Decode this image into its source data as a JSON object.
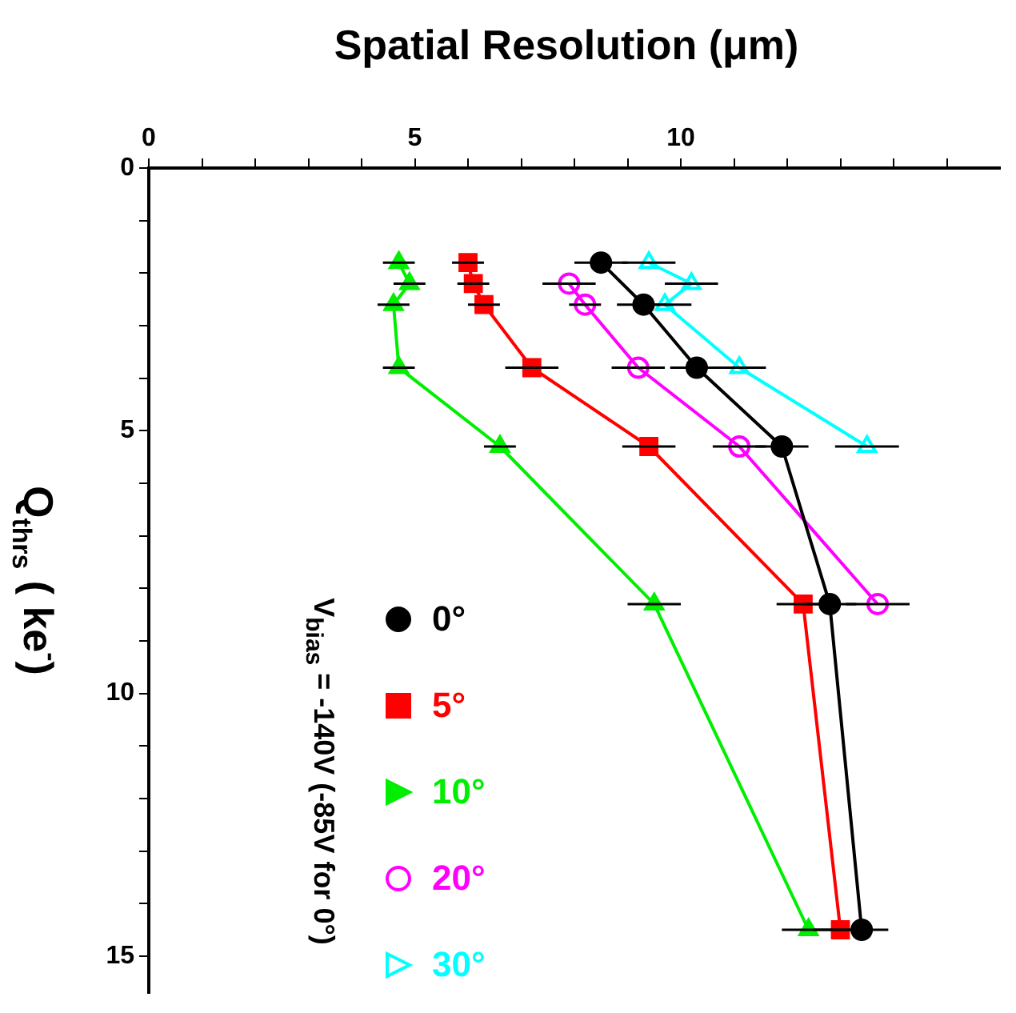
{
  "chart_data": {
    "type": "line",
    "xlabel": "Spatial Resolution (μm)",
    "ylabel": "Q$_{thrs}$ ( ke$^{-}$)",
    "legend_title": "V$_{bias}$ = -140V (-85V for 0°)",
    "legend": "bottom left",
    "grid": false,
    "line_style": "solid",
    "xlim": [
      0,
      16
    ],
    "xticks": [
      0,
      {
        "value": 1,
        "label": null
      },
      {
        "value": 2,
        "label": null
      },
      {
        "value": 3,
        "label": null
      },
      {
        "value": 4,
        "label": null
      },
      5,
      {
        "value": 6,
        "label": null
      },
      {
        "value": 7,
        "label": null
      },
      {
        "value": 8,
        "label": null
      },
      {
        "value": 9,
        "label": null
      },
      10,
      {
        "value": 11,
        "label": null
      },
      {
        "value": 12,
        "label": null
      },
      {
        "value": 13,
        "label": null
      },
      {
        "value": 14,
        "label": null
      },
      {
        "value": 15,
        "label": null
      }
    ],
    "ylim": [
      15.7,
      0
    ],
    "yticks": [
      0,
      {
        "value": 1,
        "label": null
      },
      {
        "value": 2,
        "label": null
      },
      {
        "value": 3,
        "label": null
      },
      {
        "value": 4,
        "label": null
      },
      5,
      {
        "value": 6,
        "label": null
      },
      {
        "value": 7,
        "label": null
      },
      {
        "value": 8,
        "label": null
      },
      {
        "value": 9,
        "label": null
      },
      10,
      {
        "value": 11,
        "label": null
      },
      {
        "value": 12,
        "label": null
      },
      {
        "value": 13,
        "label": null
      },
      {
        "value": 14,
        "label": null
      },
      15
    ],
    "series": [
      {
        "name": "0°",
        "color": "#000000",
        "marker": "circle",
        "x": [
          8.5,
          9.3,
          10.3,
          11.9,
          12.8,
          13.4
        ],
        "values": [
          1.8,
          2.6,
          3.8,
          5.3,
          8.3,
          14.5
        ],
        "xerrors": [
          0.5,
          0.5,
          0.5,
          0.5,
          0.5,
          0.5
        ]
      },
      {
        "name": "5°",
        "color": "#ff0000",
        "marker": "square",
        "x": [
          6.0,
          6.1,
          6.3,
          7.2,
          9.4,
          12.3,
          13.0
        ],
        "values": [
          1.8,
          2.2,
          2.6,
          3.8,
          5.3,
          8.3,
          14.5
        ],
        "xerrors": [
          0.3,
          0.3,
          0.3,
          0.5,
          0.5,
          0.5,
          0.5
        ]
      },
      {
        "name": "10°",
        "color": "#00ee00",
        "marker": "triangle",
        "x": [
          4.7,
          4.9,
          4.6,
          4.7,
          6.6,
          9.5,
          12.4
        ],
        "values": [
          1.8,
          2.2,
          2.6,
          3.8,
          5.3,
          8.3,
          14.5
        ],
        "xerrors": [
          0.3,
          0.3,
          0.3,
          0.3,
          0.3,
          0.5,
          0.5
        ]
      },
      {
        "name": "20°",
        "color": "#ff00ff",
        "marker": "circle-open",
        "x": [
          7.9,
          8.2,
          9.2,
          11.1,
          13.7
        ],
        "values": [
          2.2,
          2.6,
          3.8,
          5.3,
          8.3
        ],
        "xerrors": [
          0.5,
          0.3,
          0.5,
          0.5,
          0.6
        ]
      },
      {
        "name": "30°",
        "color": "#00ffff",
        "marker": "triangle-open",
        "x": [
          9.4,
          10.2,
          9.7,
          11.1,
          13.5
        ],
        "values": [
          1.8,
          2.2,
          2.6,
          3.8,
          5.3
        ],
        "xerrors": [
          0.5,
          0.5,
          0.5,
          0.5,
          0.6
        ]
      }
    ]
  }
}
